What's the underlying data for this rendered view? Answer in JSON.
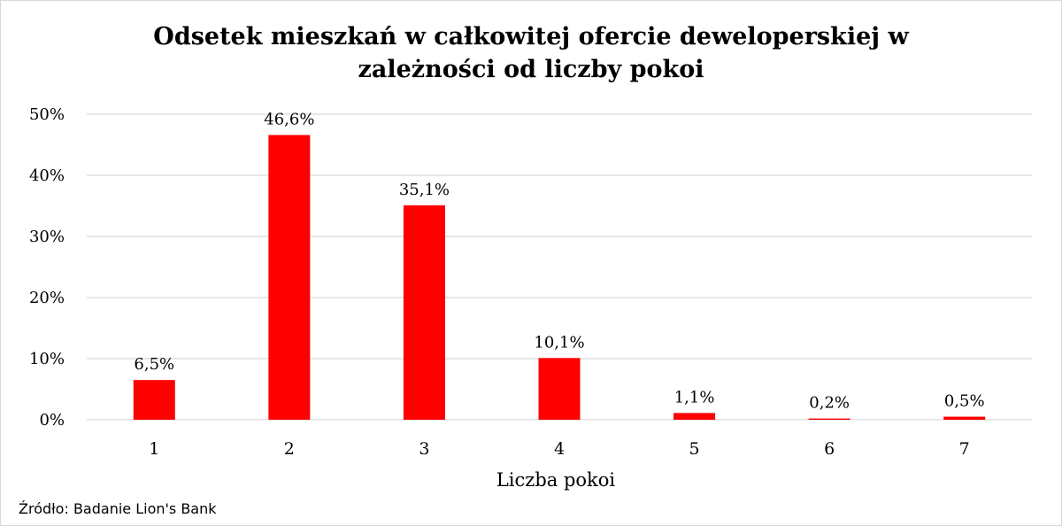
{
  "chart_data": {
    "type": "bar",
    "title": "Odsetek mieszkań w całkowitej ofercie deweloperskiej w zależności od liczby pokoi",
    "title_lines": [
      "Odsetek mieszkań w całkowitej ofercie deweloperskiej w",
      "zależności od liczby pokoi"
    ],
    "categories": [
      "1",
      "2",
      "3",
      "4",
      "5",
      "6",
      "7"
    ],
    "values": [
      6.5,
      46.6,
      35.1,
      10.1,
      1.1,
      0.2,
      0.5
    ],
    "data_labels": [
      "6,5%",
      "46,6%",
      "35,1%",
      "10,1%",
      "1,1%",
      "0,2%",
      "0,5%"
    ],
    "xlabel": "Liczba pokoi",
    "ylabel": "",
    "ylim": [
      0,
      50
    ],
    "yticks": [
      0,
      10,
      20,
      30,
      40,
      50
    ],
    "ytick_labels": [
      "0%",
      "10%",
      "20%",
      "30%",
      "40%",
      "50%"
    ],
    "grid": true,
    "legend": "none",
    "bar_color": "#ff0000",
    "grid_color": "#d9d9d9"
  },
  "source": "Źródło: Badanie Lion's Bank"
}
